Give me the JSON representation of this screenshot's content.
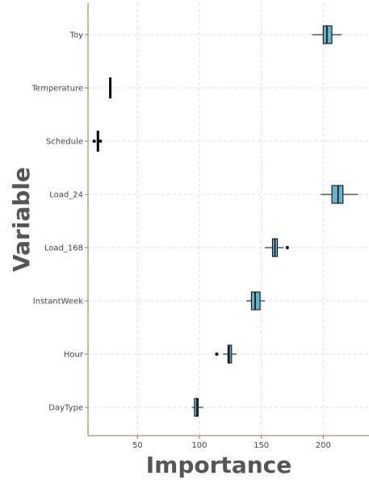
{
  "chart_data": {
    "type": "box",
    "orientation": "horizontal",
    "xlabel": "Importance",
    "ylabel": "Variable",
    "xlim": [
      10,
      237
    ],
    "xticks": [
      50,
      100,
      150,
      200
    ],
    "grid": true,
    "categories": [
      "Toy",
      "Temperature",
      "Schedule",
      "Load_24",
      "Load_168",
      "InstantWeek",
      "Hour",
      "DayType"
    ],
    "series": [
      {
        "category": "Toy",
        "whisker_low": 191,
        "q1": 200,
        "median": 203,
        "q3": 207,
        "whisker_high": 215,
        "outliers": []
      },
      {
        "category": "Temperature",
        "whisker_low": 28,
        "q1": 28,
        "median": 28,
        "q3": 28,
        "whisker_high": 28,
        "outliers": []
      },
      {
        "category": "Schedule",
        "whisker_low": 18,
        "q1": 18,
        "median": 18,
        "q3": 18,
        "whisker_high": 18,
        "outliers": [
          15,
          20
        ]
      },
      {
        "category": "Load_24",
        "whisker_low": 198,
        "q1": 207,
        "median": 212,
        "q3": 216,
        "whisker_high": 228,
        "outliers": []
      },
      {
        "category": "Load_168",
        "whisker_low": 153,
        "q1": 159,
        "median": 161,
        "q3": 163,
        "whisker_high": 168,
        "outliers": [
          171
        ]
      },
      {
        "category": "InstantWeek",
        "whisker_low": 138,
        "q1": 142,
        "median": 145,
        "q3": 149,
        "whisker_high": 153,
        "outliers": []
      },
      {
        "category": "Hour",
        "whisker_low": 119,
        "q1": 123,
        "median": 124,
        "q3": 126,
        "whisker_high": 130,
        "outliers": [
          114
        ]
      },
      {
        "category": "DayType",
        "whisker_low": 94,
        "q1": 96,
        "median": 98,
        "q3": 99,
        "whisker_high": 103,
        "outliers": []
      }
    ],
    "colors": {
      "box_fill": "#67B3CC",
      "stroke": "#000000",
      "grid": "#DDDDDD",
      "axis": "#8B7355"
    }
  }
}
